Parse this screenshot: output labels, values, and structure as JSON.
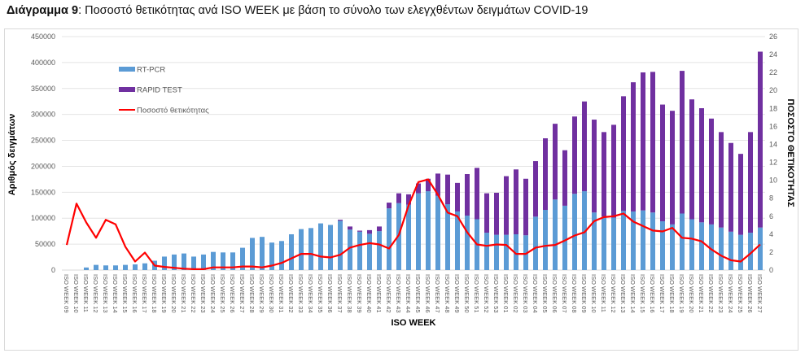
{
  "title": {
    "prefix": "Διάγραμμα 9",
    "text": ": Ποσοστό θετικότητας ανά ISO WEEK με βάση το σύνολο των ελεγχθέντων δειγμάτων COVID-19"
  },
  "chart_data": {
    "type": "bar",
    "stacked": true,
    "title": "Διάγραμμα 9: Ποσοστό θετικότητας ανά ISO WEEK με βάση το σύνολο των ελεγχθέντων δειγμάτων COVID-19",
    "xlabel": "ISO WEEK",
    "ylabel": "Αριθμός δειγμάτων",
    "y2label": "ΠΟΣΟΣΤΟ ΘΕΤΙΚΟΤΗΤΑΣ",
    "ylim": [
      0,
      450000
    ],
    "yticks": [
      "0",
      "50000",
      "100000",
      "150000",
      "200000",
      "250000",
      "300000",
      "350000",
      "400000",
      "450000"
    ],
    "y2lim": [
      0,
      26
    ],
    "y2ticks": [
      "0",
      "2",
      "4",
      "6",
      "8",
      "10",
      "12",
      "14",
      "16",
      "18",
      "20",
      "22",
      "24",
      "26"
    ],
    "grid": true,
    "legend_position": "top-left",
    "categories": [
      "ISO WEEK 09",
      "ISO WEEK 10",
      "ISO WEEK 11",
      "ISO WEEK 12",
      "ISO WEEK 13",
      "ISO WEEK 14",
      "ISO WEEK 15",
      "ISO WEEK 16",
      "ISO WEEK 17",
      "ISO WEEK 18",
      "ISO WEEK 19",
      "ISO WEEK 20",
      "ISO WEEK 21",
      "ISO WEEK 22",
      "ISO WEEK 23",
      "ISO WEEK 24",
      "ISO WEEK 25",
      "ISO WEEK 26",
      "ISO WEEK 27",
      "ISO WEEK 28",
      "ISO WEEK 29",
      "ISO WEEK 30",
      "ISO WEEK 31",
      "ISO WEEK 32",
      "ISO WEEK 33",
      "ISO WEEK 34",
      "ISO WEEK 35",
      "ISO WEEK 36",
      "ISO WEEK 37",
      "ISO WEEK 38",
      "ISO WEEK 39",
      "ISO WEEK 40",
      "ISO WEEK 41",
      "ISO WEEK 42",
      "ISO WEEK 43",
      "ISO WEEK 44",
      "ISO WEEK 45",
      "ISO WEEK 46",
      "ISO WEEK 47",
      "ISO WEEK 48",
      "ISO WEEK 49",
      "ISO WEEK 50",
      "ISO WEEK 51",
      "ISO WEEK 52",
      "ISO WEEK 53",
      "ISO WEEK 01",
      "ISO WEEK 02",
      "ISO WEEK 03",
      "ISO WEEK 04",
      "ISO WEEK 05",
      "ISO WEEK 06",
      "ISO WEEK 07",
      "ISO WEEK 08",
      "ISO WEEK 09",
      "ISO WEEK 10",
      "ISO WEEK 11",
      "ISO WEEK 12",
      "ISO WEEK 13",
      "ISO WEEK 14",
      "ISO WEEK 15",
      "ISO WEEK 16",
      "ISO WEEK 17",
      "ISO WEEK 18",
      "ISO WEEK 19",
      "ISO WEEK 20",
      "ISO WEEK 21",
      "ISO WEEK 22",
      "ISO WEEK 23",
      "ISO WEEK 24",
      "ISO WEEK 25",
      "ISO WEEK 26",
      "ISO WEEK 27"
    ],
    "series": [
      {
        "name": "RT-PCR",
        "kind": "bar",
        "axis": "left",
        "color": "#5B9BD5",
        "values": [
          0,
          0,
          5000,
          10000,
          9000,
          9000,
          10000,
          11000,
          13000,
          18000,
          26000,
          30000,
          32000,
          26000,
          30000,
          35000,
          34000,
          34000,
          43000,
          62000,
          64000,
          53000,
          56000,
          69000,
          79000,
          81000,
          90000,
          87000,
          95000,
          78000,
          74000,
          70000,
          75000,
          119000,
          129000,
          126000,
          148000,
          152000,
          143000,
          127000,
          113000,
          105000,
          98000,
          72000,
          68000,
          68000,
          69000,
          67000,
          103000,
          116000,
          136000,
          124000,
          147000,
          152000,
          111000,
          103000,
          101000,
          114000,
          113000,
          115000,
          111000,
          94000,
          88000,
          109000,
          98000,
          92000,
          88000,
          82000,
          74000,
          68000,
          72000,
          82000
        ]
      },
      {
        "name": "RAPID TEST",
        "kind": "bar",
        "axis": "left",
        "color": "#7030A0",
        "values": [
          0,
          0,
          0,
          0,
          0,
          0,
          0,
          0,
          0,
          0,
          0,
          0,
          0,
          0,
          0,
          0,
          0,
          0,
          0,
          0,
          0,
          0,
          0,
          0,
          0,
          0,
          0,
          0,
          2000,
          6000,
          2000,
          7000,
          9000,
          11000,
          19000,
          20000,
          19000,
          24000,
          43000,
          57000,
          55000,
          80000,
          99000,
          76000,
          81000,
          113000,
          125000,
          109000,
          107000,
          138000,
          146000,
          107000,
          149000,
          173000,
          179000,
          163000,
          179000,
          221000,
          249000,
          266000,
          271000,
          225000,
          219000,
          275000,
          231000,
          220000,
          204000,
          184000,
          171000,
          156000,
          194000,
          339000
        ]
      },
      {
        "name": "Ποσοστό θετικότητας",
        "kind": "line",
        "axis": "right",
        "color": "#FF0000",
        "values": [
          2.8,
          7.4,
          5.3,
          3.6,
          5.6,
          5.1,
          2.6,
          0.95,
          1.95,
          0.5,
          0.35,
          0.25,
          0.15,
          0.1,
          0.1,
          0.3,
          0.3,
          0.3,
          0.4,
          0.4,
          0.3,
          0.5,
          0.8,
          1.3,
          1.8,
          1.8,
          1.5,
          1.4,
          1.7,
          2.5,
          2.8,
          3.0,
          2.85,
          2.4,
          3.9,
          7.2,
          9.8,
          10.1,
          8.4,
          6.4,
          6.0,
          4.2,
          2.85,
          2.7,
          2.85,
          2.8,
          1.8,
          1.8,
          2.5,
          2.7,
          2.8,
          3.3,
          3.85,
          4.2,
          5.45,
          5.9,
          6.0,
          6.3,
          5.4,
          4.9,
          4.4,
          4.3,
          4.7,
          3.6,
          3.5,
          3.2,
          2.3,
          1.6,
          1.1,
          0.95,
          1.85,
          2.85
        ]
      }
    ]
  }
}
